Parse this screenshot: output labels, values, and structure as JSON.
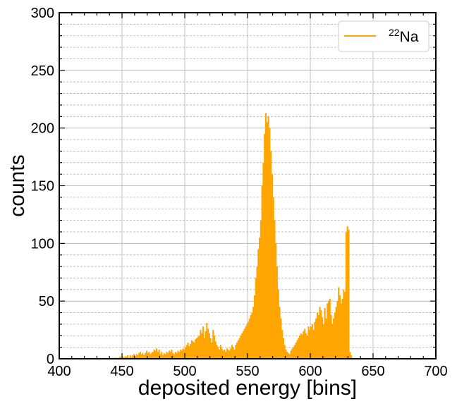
{
  "chart_data": {
    "type": "bar",
    "xlabel": "deposited energy [bins]",
    "ylabel": "counts",
    "xlim": [
      400,
      700
    ],
    "ylim": [
      0,
      300
    ],
    "xticks": [
      400,
      450,
      500,
      550,
      600,
      650,
      700
    ],
    "yticks": [
      0,
      50,
      100,
      150,
      200,
      250,
      300
    ],
    "y_minor_step": 10,
    "x_minor_step": 10,
    "grid": true,
    "legend_position": "top-right",
    "series": [
      {
        "name": "22Na",
        "name_superscript": "22",
        "name_base": "Na",
        "color": "#ffa500",
        "x_start": 400,
        "bin_width": 1,
        "values": [
          0,
          0,
          0,
          0,
          0,
          0,
          0,
          0,
          0,
          0,
          0,
          0,
          0,
          0,
          0,
          0,
          0,
          0,
          0,
          0,
          0,
          0,
          0,
          0,
          0,
          0,
          0,
          0,
          0,
          0,
          0,
          0,
          0,
          0,
          0,
          0,
          0,
          0,
          0,
          0,
          1,
          0,
          1,
          0,
          1,
          1,
          0,
          1,
          2,
          1,
          2,
          1,
          2,
          2,
          3,
          1,
          3,
          2,
          3,
          4,
          2,
          4,
          3,
          5,
          6,
          4,
          5,
          3,
          5,
          7,
          5,
          6,
          4,
          5,
          6,
          8,
          7,
          9,
          6,
          8,
          4,
          6,
          3,
          5,
          4,
          6,
          5,
          7,
          6,
          8,
          5,
          4,
          6,
          5,
          7,
          6,
          8,
          7,
          9,
          8,
          10,
          12,
          14,
          11,
          13,
          16,
          15,
          14,
          17,
          18,
          19,
          20,
          25,
          22,
          28,
          18,
          24,
          31,
          26,
          22,
          18,
          14,
          25,
          20,
          15,
          12,
          10,
          8,
          12,
          9,
          7,
          8,
          6,
          9,
          8,
          7,
          9,
          12,
          10,
          8,
          12,
          14,
          16,
          18,
          20,
          22,
          24,
          26,
          28,
          30,
          32,
          35,
          38,
          40,
          45,
          55,
          70,
          80,
          95,
          105,
          120,
          150,
          170,
          195,
          213,
          205,
          210,
          200,
          180,
          160,
          140,
          120,
          100,
          80,
          60,
          45,
          35,
          25,
          18,
          12,
          8,
          6,
          5,
          4,
          7,
          9,
          10,
          12,
          14,
          16,
          18,
          20,
          22,
          21,
          24,
          26,
          22,
          20,
          28,
          25,
          28,
          30,
          25,
          32,
          35,
          40,
          38,
          45,
          42,
          36,
          30,
          44,
          35,
          48,
          50,
          52,
          38,
          30,
          35,
          40,
          45,
          50,
          62,
          55,
          48,
          52,
          60,
          58,
          110,
          115,
          112,
          6,
          3,
          0,
          0,
          0,
          0,
          0,
          0,
          0,
          0,
          0,
          0,
          0,
          0,
          0,
          0,
          0,
          0,
          0,
          0,
          0,
          0,
          0,
          0,
          0,
          0,
          0,
          0,
          0,
          0,
          0,
          0,
          0,
          0,
          0,
          0,
          0,
          0,
          0,
          0,
          0,
          0,
          0,
          0,
          0,
          0,
          0,
          0,
          0,
          0,
          0,
          0,
          0,
          0,
          0,
          0,
          0,
          0,
          0,
          0,
          0,
          0,
          0,
          0,
          0,
          0,
          0,
          0,
          0,
          0,
          0,
          0,
          0,
          0,
          0,
          0,
          0,
          0,
          0,
          0,
          0,
          0,
          0,
          0,
          0,
          0,
          0,
          0,
          0
        ]
      }
    ]
  }
}
